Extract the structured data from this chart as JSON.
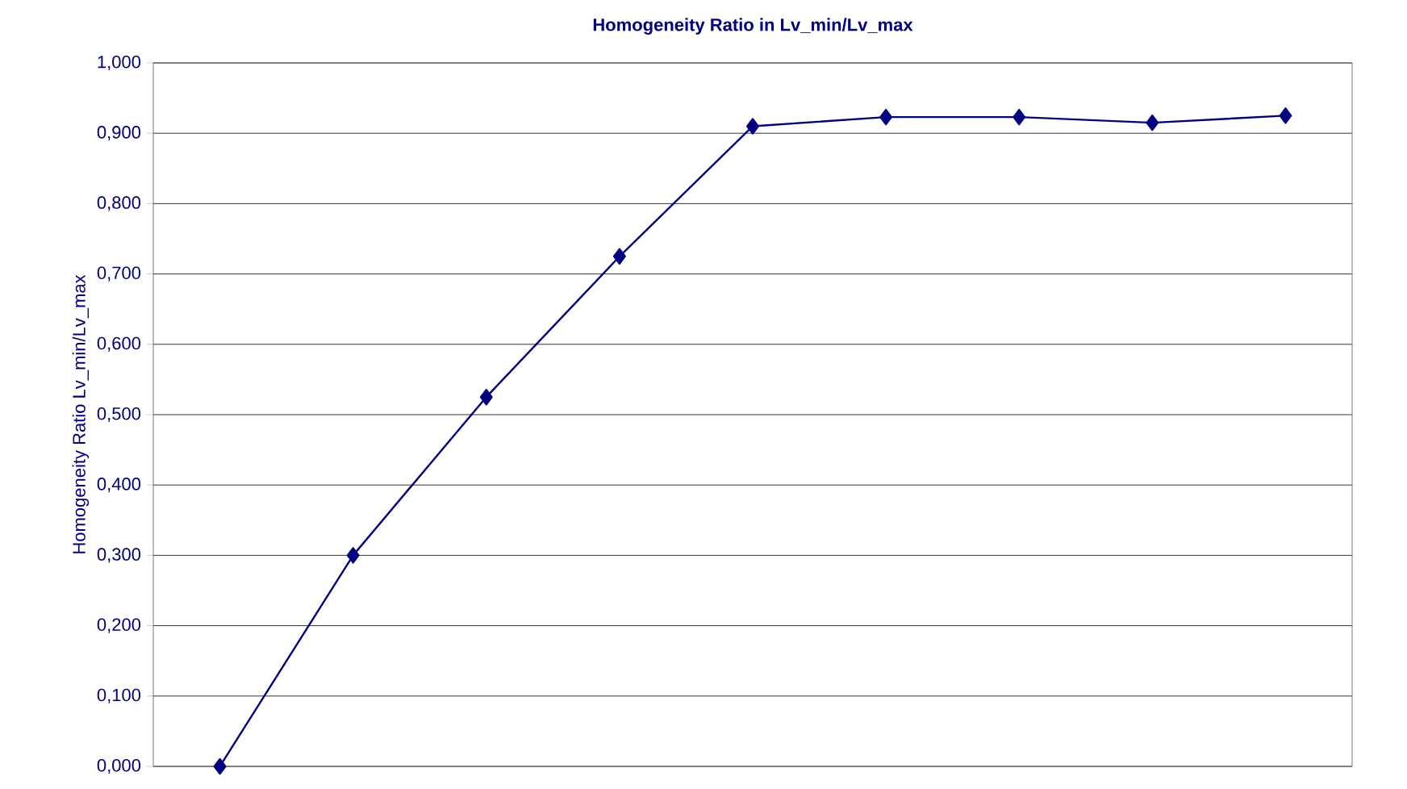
{
  "chart_data": {
    "type": "line",
    "title": "Homogeneity Ratio in Lv_min/Lv_max",
    "ylabel": "Homogeneity Ratio Lv_min/Lv_max",
    "categories": [
      null,
      null,
      null,
      null,
      null,
      null,
      null,
      null,
      null
    ],
    "series": [
      {
        "color": "#000080",
        "values": [
          0.0,
          0.3,
          0.525,
          0.725,
          0.91,
          0.923,
          0.923,
          0.915,
          0.925
        ]
      }
    ],
    "ylim": [
      0,
      1
    ],
    "yticks": [
      {
        "value": 0,
        "label": "0,000"
      },
      {
        "value": 0.1,
        "label": "0,100"
      },
      {
        "value": 0.2,
        "label": "0,200"
      },
      {
        "value": 0.3,
        "label": "0,300"
      },
      {
        "value": 0.4,
        "label": "0,400"
      },
      {
        "value": 0.5,
        "label": "0,500"
      },
      {
        "value": 0.6,
        "label": "0,600"
      },
      {
        "value": 0.7,
        "label": "0,700"
      },
      {
        "value": 0.8,
        "label": "0,800"
      },
      {
        "value": 0.9,
        "label": "0,900"
      },
      {
        "value": 1.0,
        "label": "1,000"
      }
    ],
    "grid": "y",
    "marker": "diamond",
    "line_style": "solid"
  }
}
